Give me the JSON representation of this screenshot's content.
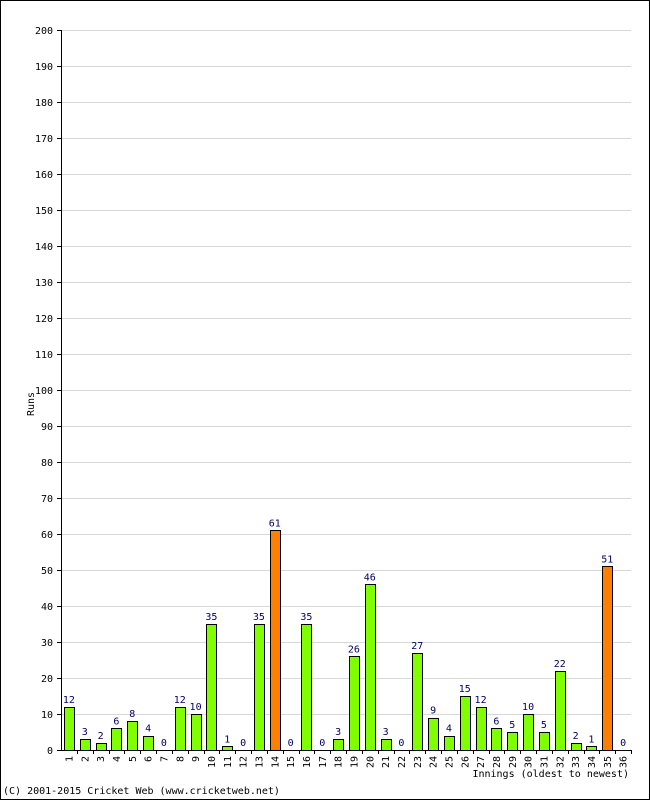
{
  "chart_data": {
    "type": "bar",
    "title": "",
    "xlabel": "Innings (oldest to newest)",
    "ylabel": "Runs",
    "ylim": [
      0,
      200
    ],
    "y_ticks": [
      0,
      10,
      20,
      30,
      40,
      50,
      60,
      70,
      80,
      90,
      100,
      110,
      120,
      130,
      140,
      150,
      160,
      170,
      180,
      190,
      200
    ],
    "grid": true,
    "categories": [
      "1",
      "2",
      "3",
      "4",
      "5",
      "6",
      "7",
      "8",
      "9",
      "10",
      "11",
      "12",
      "13",
      "14",
      "15",
      "16",
      "17",
      "18",
      "19",
      "20",
      "21",
      "22",
      "23",
      "24",
      "25",
      "26",
      "27",
      "28",
      "29",
      "30",
      "31",
      "32",
      "33",
      "34",
      "35",
      "36"
    ],
    "values": [
      12,
      3,
      2,
      6,
      8,
      4,
      0,
      12,
      10,
      35,
      1,
      0,
      35,
      61,
      0,
      35,
      0,
      3,
      26,
      46,
      3,
      0,
      27,
      9,
      4,
      15,
      12,
      6,
      5,
      10,
      5,
      22,
      2,
      1,
      51,
      0
    ],
    "highlight": [
      false,
      false,
      false,
      false,
      false,
      false,
      false,
      false,
      false,
      false,
      false,
      false,
      false,
      true,
      false,
      false,
      false,
      false,
      false,
      false,
      false,
      false,
      false,
      false,
      false,
      false,
      false,
      false,
      false,
      false,
      false,
      false,
      false,
      false,
      true,
      false
    ],
    "colors": {
      "bar": "#7fff00",
      "highlight": "#ff8000",
      "bar_stroke": "#000000",
      "grid": "#d8d8d8",
      "label": "#000066"
    }
  },
  "footer": {
    "copyright": "(C) 2001-2015 Cricket Web (www.cricketweb.net)"
  }
}
